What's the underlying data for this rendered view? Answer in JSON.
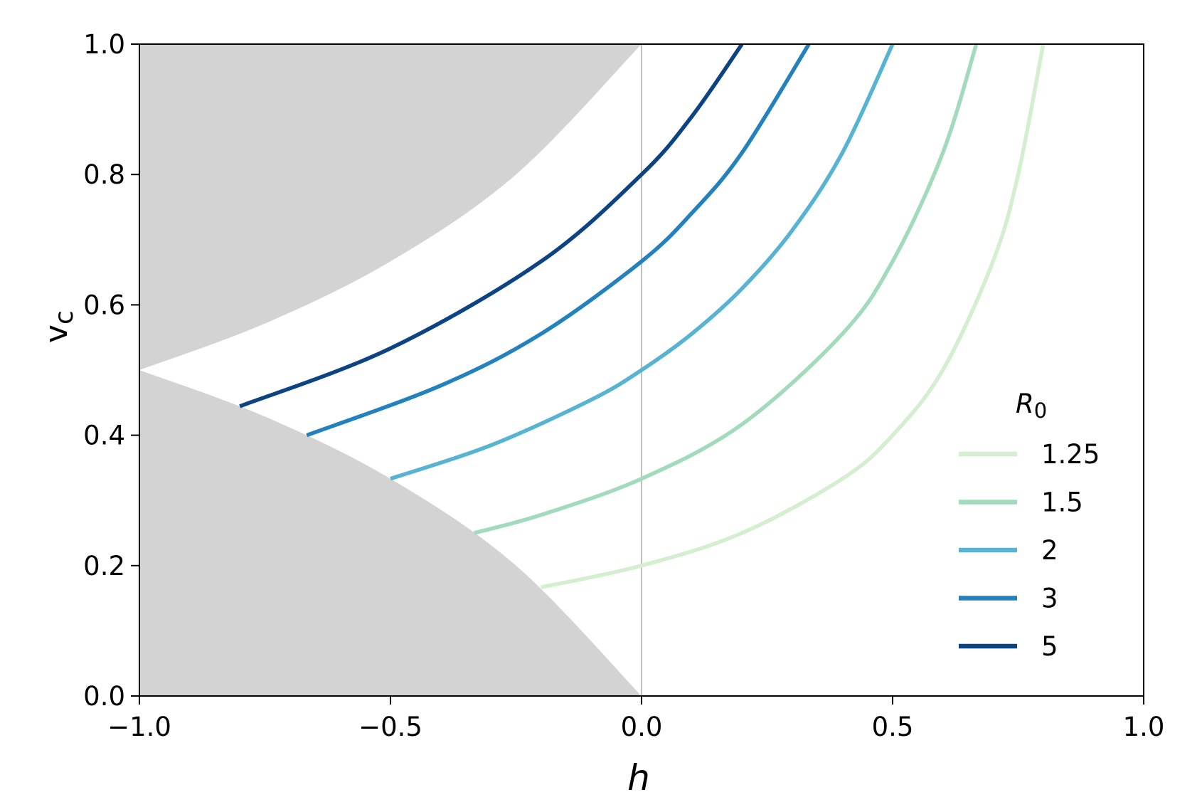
{
  "chart_data": {
    "type": "line",
    "xlabel": "h",
    "ylabel": "v",
    "ylabel_subscript": "c",
    "xlim": [
      -1.0,
      1.0
    ],
    "ylim": [
      0.0,
      1.0
    ],
    "xticks": [
      -1.0,
      -0.5,
      0.0,
      0.5,
      1.0
    ],
    "xtick_labels": [
      "−1.0",
      "−0.5",
      "0.0",
      "0.5",
      "1.0"
    ],
    "yticks": [
      0.0,
      0.2,
      0.4,
      0.6,
      0.8,
      1.0
    ],
    "ytick_labels": [
      "0.0",
      "0.2",
      "0.4",
      "0.6",
      "0.8",
      "1.0"
    ],
    "grid": false,
    "legend": {
      "title": "R",
      "title_subscript": "0",
      "placement": "lower-right"
    },
    "reference_line": {
      "x": 0.0,
      "color": "#b0b0b0"
    },
    "shaded_regions": [
      {
        "name": "upper-gray-region",
        "color": "#d3d3d3",
        "boundary": [
          [
            -1.0,
            0.5
          ],
          [
            -0.75,
            0.5714
          ],
          [
            -0.5,
            0.6667
          ],
          [
            -0.25,
            0.8
          ],
          [
            0.0,
            1.0
          ]
        ]
      },
      {
        "name": "lower-gray-region",
        "color": "#d3d3d3",
        "boundary": [
          [
            -1.0,
            0.5
          ],
          [
            -0.75,
            0.4286
          ],
          [
            -0.5,
            0.3333
          ],
          [
            -0.25,
            0.2
          ],
          [
            0.0,
            0.0
          ]
        ]
      }
    ],
    "series": [
      {
        "name": "1.25",
        "color": "#d4efcf",
        "x": [
          -0.2,
          0.0,
          0.2,
          0.4,
          0.5,
          0.6,
          0.7,
          0.75,
          0.8
        ],
        "y": [
          0.1667,
          0.2,
          0.25,
          0.3333,
          0.4,
          0.5,
          0.6667,
          0.8,
          1.0
        ]
      },
      {
        "name": "1.5",
        "color": "#a2dbbc",
        "x": [
          -0.3333,
          -0.2,
          0.0,
          0.2,
          0.4,
          0.5,
          0.6,
          0.6667
        ],
        "y": [
          0.25,
          0.2778,
          0.3333,
          0.4167,
          0.5556,
          0.6667,
          0.8333,
          1.0
        ]
      },
      {
        "name": "2",
        "color": "#57b3d2",
        "x": [
          -0.5,
          -0.3,
          -0.1,
          0.0,
          0.1,
          0.2,
          0.3,
          0.4,
          0.5
        ],
        "y": [
          0.3333,
          0.3846,
          0.4545,
          0.5,
          0.5556,
          0.625,
          0.7143,
          0.8333,
          1.0
        ]
      },
      {
        "name": "3",
        "color": "#2381be",
        "x": [
          -0.6667,
          -0.4,
          -0.2,
          0.0,
          0.1,
          0.2,
          0.3333
        ],
        "y": [
          0.4,
          0.4762,
          0.5556,
          0.6667,
          0.7407,
          0.8333,
          1.0
        ]
      },
      {
        "name": "5",
        "color": "#0b4383",
        "x": [
          -0.8,
          -0.5,
          -0.2,
          0.0,
          0.1,
          0.2
        ],
        "y": [
          0.4444,
          0.5333,
          0.6667,
          0.8,
          0.8889,
          1.0
        ]
      }
    ]
  }
}
